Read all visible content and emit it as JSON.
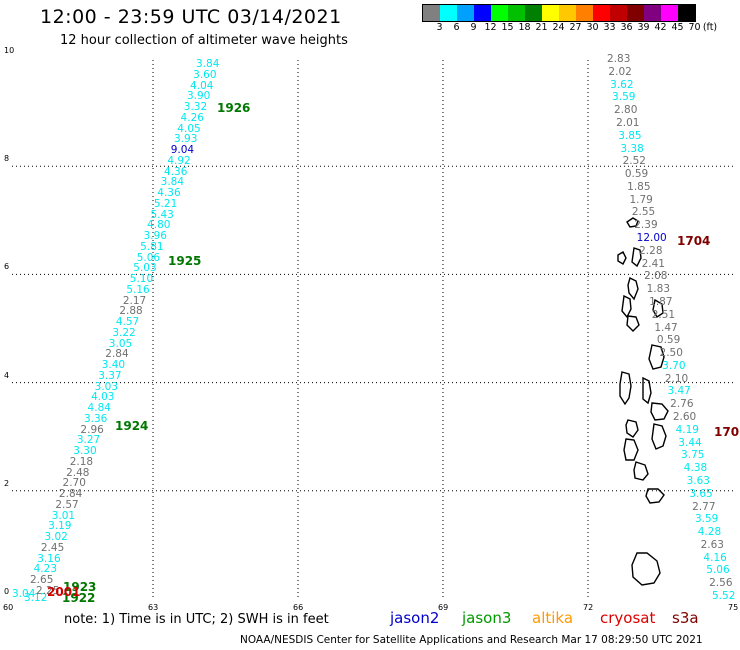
{
  "title": "12:00 - 23:59 UTC 03/14/2021",
  "subtitle": "12 hour collection of altimeter wave heights",
  "colorbar": {
    "unit_label": "(ft)",
    "stops": [
      {
        "label": "3",
        "color": "#808080"
      },
      {
        "label": "6",
        "color": "#00ffff"
      },
      {
        "label": "9",
        "color": "#00a0ff"
      },
      {
        "label": "12",
        "color": "#0000ff"
      },
      {
        "label": "15",
        "color": "#00ff00"
      },
      {
        "label": "18",
        "color": "#00c000"
      },
      {
        "label": "21",
        "color": "#008000"
      },
      {
        "label": "24",
        "color": "#ffff00"
      },
      {
        "label": "27",
        "color": "#ffc800"
      },
      {
        "label": "30",
        "color": "#ff8000"
      },
      {
        "label": "33",
        "color": "#ff0000"
      },
      {
        "label": "36",
        "color": "#c00000"
      },
      {
        "label": "39",
        "color": "#800000"
      },
      {
        "label": "42",
        "color": "#800080"
      },
      {
        "label": "45",
        "color": "#ff00ff"
      },
      {
        "label": "70",
        "color": "#000000"
      }
    ]
  },
  "axes": {
    "x_ticks": [
      "60",
      "63",
      "66",
      "69",
      "72",
      "75"
    ],
    "y_ticks": [
      "0",
      "2",
      "4",
      "6",
      "8",
      "10"
    ]
  },
  "note": "note: 1) Time is in UTC; 2) SWH is in feet",
  "satellites": [
    {
      "name": "jason2",
      "color": "#0000cc"
    },
    {
      "name": "jason3",
      "color": "#009900"
    },
    {
      "name": "altika",
      "color": "#ff9900"
    },
    {
      "name": "cryosat",
      "color": "#dd0000"
    },
    {
      "name": "s3a",
      "color": "#800000"
    }
  ],
  "footer": "NOAA/NESDIS Center for Satellite Applications and Research   Mar 17 08:29:50 UTC 2021",
  "pass_labels": [
    {
      "text": "1926",
      "color": "#007700"
    },
    {
      "text": "1925",
      "color": "#007700"
    },
    {
      "text": "1924",
      "color": "#007700"
    },
    {
      "text": "1923",
      "color": "#007700"
    },
    {
      "text": "1922",
      "color": "#007700"
    },
    {
      "text": "2001",
      "color": "#cc0000"
    },
    {
      "text": "1704",
      "color": "#800000"
    },
    {
      "text": "170",
      "color": "#800000"
    }
  ],
  "track_left": [
    {
      "v": "3.84",
      "c": "cyan"
    },
    {
      "v": "3.60",
      "c": "cyan"
    },
    {
      "v": "4.04",
      "c": "cyan"
    },
    {
      "v": "3.90",
      "c": "cyan"
    },
    {
      "v": "3.32",
      "c": "cyan"
    },
    {
      "v": "4.26",
      "c": "cyan"
    },
    {
      "v": "4.05",
      "c": "cyan"
    },
    {
      "v": "3.93",
      "c": "cyan"
    },
    {
      "v": "9.04",
      "c": "blue"
    },
    {
      "v": "4.92",
      "c": "cyan"
    },
    {
      "v": "4.36",
      "c": "cyan"
    },
    {
      "v": "3.84",
      "c": "cyan"
    },
    {
      "v": "4.36",
      "c": "cyan"
    },
    {
      "v": "5.21",
      "c": "cyan"
    },
    {
      "v": "5.43",
      "c": "cyan"
    },
    {
      "v": "4.80",
      "c": "cyan"
    },
    {
      "v": "3.96",
      "c": "cyan"
    },
    {
      "v": "5.81",
      "c": "cyan"
    },
    {
      "v": "5.06",
      "c": "cyan"
    },
    {
      "v": "5.03",
      "c": "cyan"
    },
    {
      "v": "5.10",
      "c": "cyan"
    },
    {
      "v": "5.16",
      "c": "cyan"
    },
    {
      "v": "2.17",
      "c": "gray"
    },
    {
      "v": "2.88",
      "c": "gray"
    },
    {
      "v": "4.57",
      "c": "cyan"
    },
    {
      "v": "3.22",
      "c": "cyan"
    },
    {
      "v": "3.05",
      "c": "cyan"
    },
    {
      "v": "2.84",
      "c": "gray"
    },
    {
      "v": "3.40",
      "c": "cyan"
    },
    {
      "v": "3.37",
      "c": "cyan"
    },
    {
      "v": "3.03",
      "c": "cyan"
    },
    {
      "v": "4.03",
      "c": "cyan"
    },
    {
      "v": "4.84",
      "c": "cyan"
    },
    {
      "v": "3.36",
      "c": "cyan"
    },
    {
      "v": "2.96",
      "c": "gray"
    },
    {
      "v": "3.27",
      "c": "cyan"
    },
    {
      "v": "3.30",
      "c": "cyan"
    },
    {
      "v": "2.18",
      "c": "gray"
    },
    {
      "v": "2.48",
      "c": "gray"
    },
    {
      "v": "2.70",
      "c": "gray"
    },
    {
      "v": "2.84",
      "c": "gray"
    },
    {
      "v": "2.57",
      "c": "gray"
    },
    {
      "v": "3.01",
      "c": "cyan"
    },
    {
      "v": "3.19",
      "c": "cyan"
    },
    {
      "v": "3.02",
      "c": "cyan"
    },
    {
      "v": "2.45",
      "c": "gray"
    },
    {
      "v": "3.16",
      "c": "cyan"
    },
    {
      "v": "4.23",
      "c": "cyan"
    },
    {
      "v": "2.65",
      "c": "gray"
    }
  ],
  "track_left_bottom": [
    "3.04",
    "3.12",
    "2.25"
  ],
  "track_right": [
    {
      "v": "2.83",
      "c": "gray"
    },
    {
      "v": "2.02",
      "c": "gray"
    },
    {
      "v": "3.62",
      "c": "cyan"
    },
    {
      "v": "3.59",
      "c": "cyan"
    },
    {
      "v": "2.80",
      "c": "gray"
    },
    {
      "v": "2.01",
      "c": "gray"
    },
    {
      "v": "3.85",
      "c": "cyan"
    },
    {
      "v": "3.38",
      "c": "cyan"
    },
    {
      "v": "2.52",
      "c": "gray"
    },
    {
      "v": "0.59",
      "c": "gray"
    },
    {
      "v": "1.85",
      "c": "gray"
    },
    {
      "v": "1.79",
      "c": "gray"
    },
    {
      "v": "2.55",
      "c": "gray"
    },
    {
      "v": "2.39",
      "c": "gray"
    },
    {
      "v": "12.00",
      "c": "blue"
    },
    {
      "v": "2.28",
      "c": "gray"
    },
    {
      "v": "2.41",
      "c": "gray"
    },
    {
      "v": "2.08",
      "c": "gray"
    },
    {
      "v": "1.83",
      "c": "gray"
    },
    {
      "v": "1.87",
      "c": "gray"
    },
    {
      "v": "2.51",
      "c": "gray"
    },
    {
      "v": "1.47",
      "c": "gray"
    },
    {
      "v": "0.59",
      "c": "gray"
    },
    {
      "v": "2.50",
      "c": "gray"
    },
    {
      "v": "3.70",
      "c": "cyan"
    },
    {
      "v": "2.10",
      "c": "gray"
    },
    {
      "v": "3.47",
      "c": "cyan"
    },
    {
      "v": "2.76",
      "c": "gray"
    },
    {
      "v": "2.60",
      "c": "gray"
    },
    {
      "v": "4.19",
      "c": "cyan"
    },
    {
      "v": "3.44",
      "c": "cyan"
    },
    {
      "v": "3.75",
      "c": "cyan"
    },
    {
      "v": "4.38",
      "c": "cyan"
    },
    {
      "v": "3.63",
      "c": "cyan"
    },
    {
      "v": "3.65",
      "c": "cyan"
    },
    {
      "v": "2.77",
      "c": "gray"
    },
    {
      "v": "3.59",
      "c": "cyan"
    },
    {
      "v": "4.28",
      "c": "cyan"
    },
    {
      "v": "2.63",
      "c": "gray"
    },
    {
      "v": "4.16",
      "c": "cyan"
    },
    {
      "v": "5.06",
      "c": "cyan"
    },
    {
      "v": "2.56",
      "c": "gray"
    },
    {
      "v": "5.52",
      "c": "cyan"
    }
  ]
}
